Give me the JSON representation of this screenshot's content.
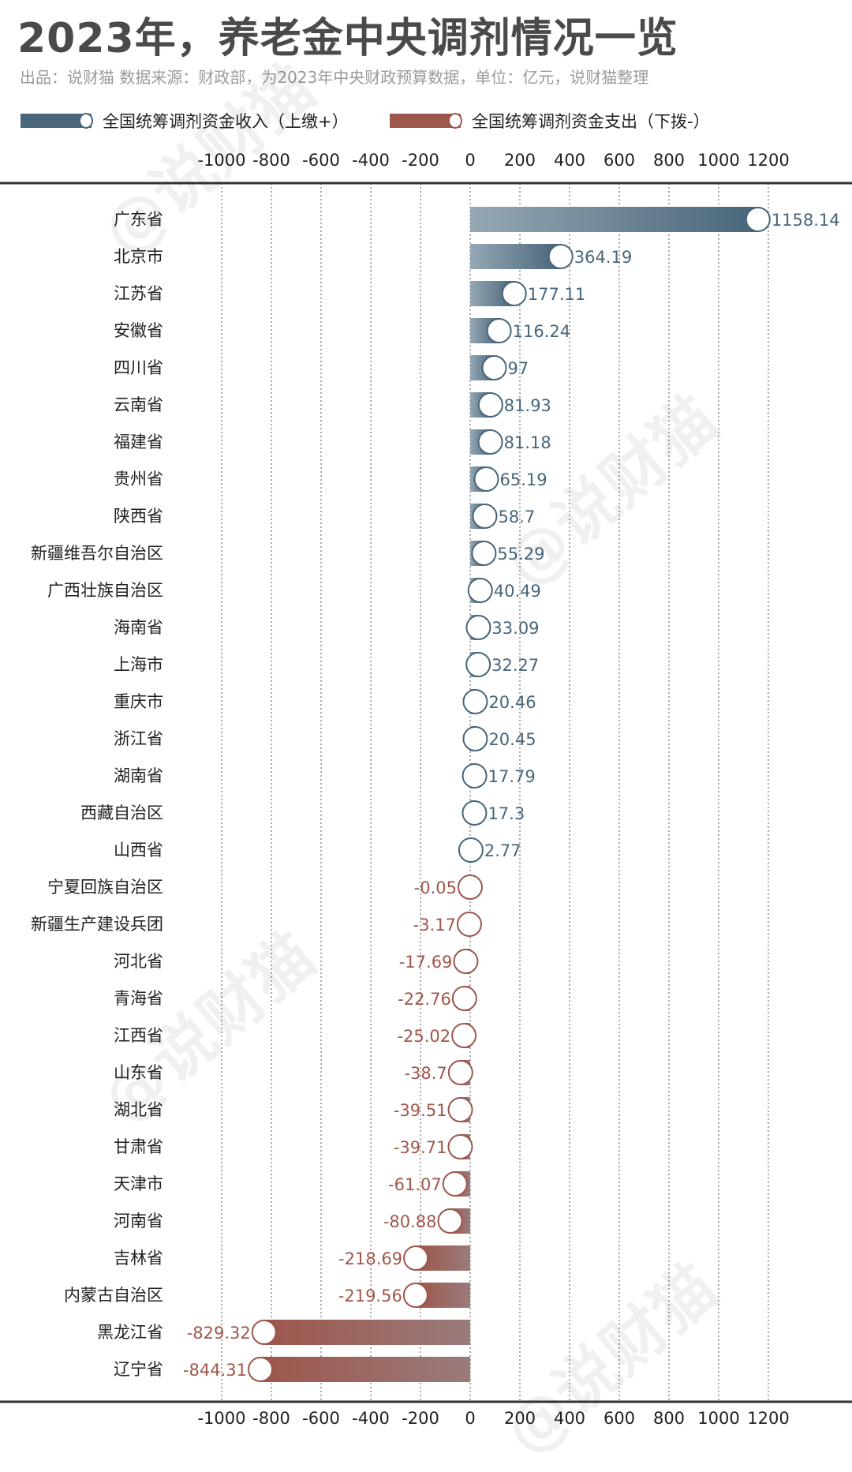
{
  "title": "2023年，养老金中央调剂情况一览",
  "subtitle": "出品：说财猫   数据来源：财政部，为2023年中央财政预算数据，单位：亿元，说财猫整理",
  "watermark": "@说财猫",
  "colors": {
    "income": "#48657a",
    "income_light": "#95a8b4",
    "expense": "#9c564b",
    "expense_light": "#9a7b7b",
    "positive_label": "#48657a",
    "negative_label": "#a0564c"
  },
  "chart_data": {
    "type": "bar",
    "orientation": "horizontal",
    "xlim": [
      -1000,
      1200
    ],
    "xticks": [
      "-1000",
      "-800",
      "-600",
      "-400",
      "-200",
      "0",
      "200",
      "400",
      "600",
      "800",
      "1000",
      "1200"
    ],
    "grid": true,
    "legend_placement": "top-left",
    "series": [
      {
        "name": "全国统筹调剂资金收入（上缴+）"
      },
      {
        "name": "全国统筹调剂资金支出（下拨-）"
      }
    ],
    "categories": [
      "广东省",
      "北京市",
      "江苏省",
      "安徽省",
      "四川省",
      "云南省",
      "福建省",
      "贵州省",
      "陕西省",
      "新疆维吾尔自治区",
      "广西壮族自治区",
      "海南省",
      "上海市",
      "重庆市",
      "浙江省",
      "湖南省",
      "西藏自治区",
      "山西省",
      "宁夏回族自治区",
      "新疆生产建设兵团",
      "河北省",
      "青海省",
      "江西省",
      "山东省",
      "湖北省",
      "甘肃省",
      "天津市",
      "河南省",
      "吉林省",
      "内蒙古自治区",
      "黑龙江省",
      "辽宁省"
    ],
    "values": [
      1158.14,
      364.19,
      177.11,
      116.24,
      97,
      81.93,
      81.18,
      65.19,
      58.7,
      55.29,
      40.49,
      33.09,
      32.27,
      20.46,
      20.45,
      17.79,
      17.3,
      2.77,
      -0.05,
      -3.17,
      -17.69,
      -22.76,
      -25.02,
      -38.7,
      -39.51,
      -39.71,
      -61.07,
      -80.88,
      -218.69,
      -219.56,
      -829.32,
      -844.31
    ],
    "value_labels": [
      "1158.14",
      "364.19",
      "177.11",
      "116.24",
      "97",
      "81.93",
      "81.18",
      "65.19",
      "58.7",
      "55.29",
      "40.49",
      "33.09",
      "32.27",
      "20.46",
      "20.45",
      "17.79",
      "17.3",
      "2.77",
      "-0.05",
      "-3.17",
      "-17.69",
      "-22.76",
      "-25.02",
      "-38.7",
      "-39.51",
      "-39.71",
      "-61.07",
      "-80.88",
      "-218.69",
      "-219.56",
      "-829.32",
      "-844.31"
    ]
  }
}
